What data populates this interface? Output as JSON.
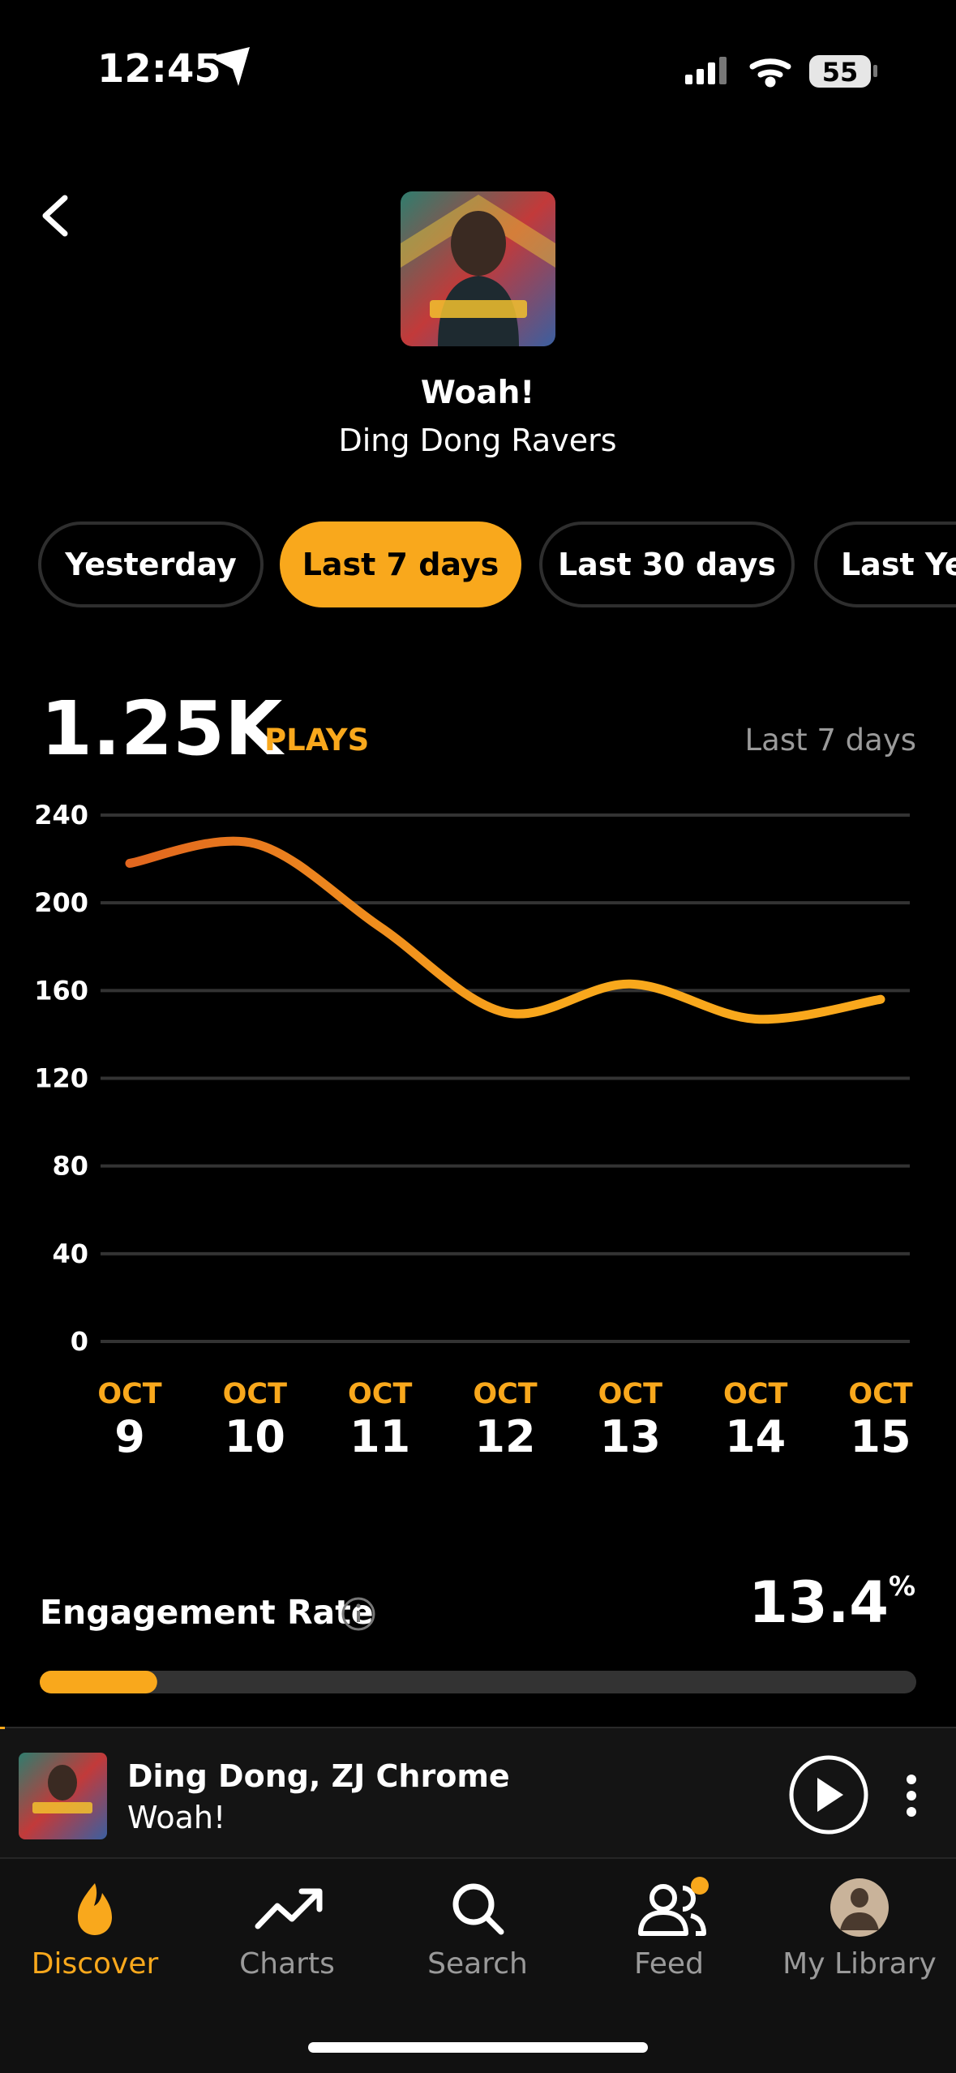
{
  "status_bar": {
    "time": "12:45",
    "battery": "55"
  },
  "header": {
    "title": "Woah!",
    "artist": "Ding Dong Ravers"
  },
  "tabs": [
    {
      "label": "Yesterday",
      "selected": false
    },
    {
      "label": "Last 7 days",
      "selected": true
    },
    {
      "label": "Last 30 days",
      "selected": false
    },
    {
      "label": "Last Year",
      "selected": false
    }
  ],
  "summary": {
    "total": "1.25K",
    "unit": "PLAYS",
    "period": "Last 7 days"
  },
  "chart_data": {
    "type": "line",
    "categories": [
      {
        "month": "OCT",
        "day": "9"
      },
      {
        "month": "OCT",
        "day": "10"
      },
      {
        "month": "OCT",
        "day": "11"
      },
      {
        "month": "OCT",
        "day": "12"
      },
      {
        "month": "OCT",
        "day": "13"
      },
      {
        "month": "OCT",
        "day": "14"
      },
      {
        "month": "OCT",
        "day": "15"
      }
    ],
    "values": [
      218,
      227,
      189,
      150,
      163,
      147,
      156
    ],
    "color": "#f9a81c",
    "gradient_start": "#e0621f",
    "ylim": [
      0,
      240
    ],
    "yticks": [
      0,
      40,
      80,
      120,
      160,
      200,
      240
    ],
    "grid": true
  },
  "engagement": {
    "label": "Engagement Rate",
    "rate": 13.4,
    "unit": "%"
  },
  "player": {
    "artists": "Ding Dong, ZJ Chrome",
    "title": "Woah!"
  },
  "nav": [
    {
      "label": "Discover",
      "active": true
    },
    {
      "label": "Charts",
      "active": false
    },
    {
      "label": "Search",
      "active": false
    },
    {
      "label": "Feed",
      "active": false
    },
    {
      "label": "My Library",
      "active": false
    }
  ]
}
